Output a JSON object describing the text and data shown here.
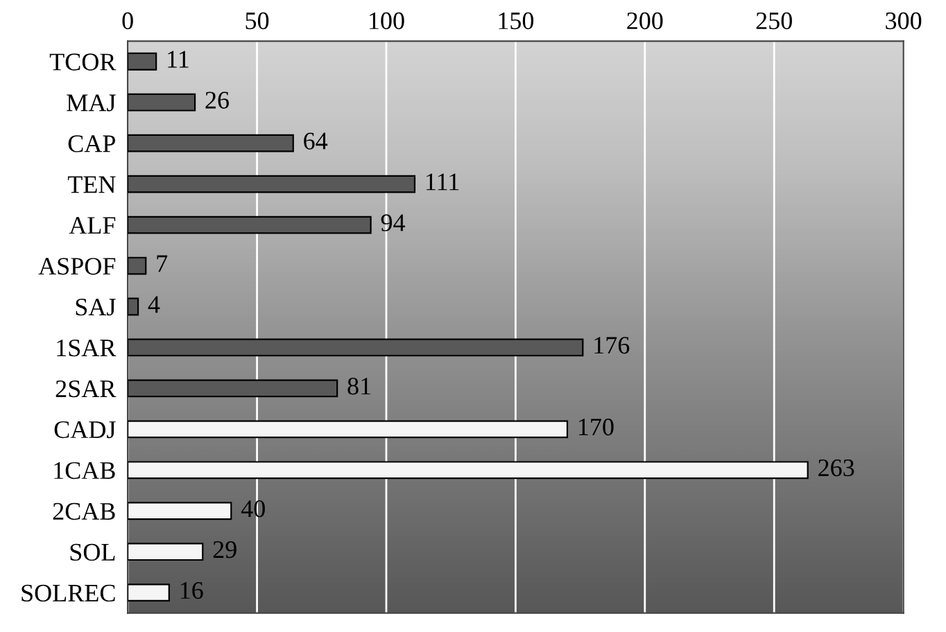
{
  "chart_data": {
    "type": "bar",
    "orientation": "horizontal",
    "categories": [
      "TCOR",
      "MAJ",
      "CAP",
      "TEN",
      "ALF",
      "ASPOF",
      "SAJ",
      "1SAR",
      "2SAR",
      "CADJ",
      "1CAB",
      "2CAB",
      "SOL",
      "SOLREC"
    ],
    "values": [
      11,
      26,
      64,
      111,
      94,
      7,
      4,
      176,
      81,
      170,
      263,
      40,
      29,
      16
    ],
    "colors": [
      "#595959",
      "#595959",
      "#595959",
      "#595959",
      "#595959",
      "#595959",
      "#595959",
      "#595959",
      "#595959",
      "#f5f5f5",
      "#f5f5f5",
      "#f5f5f5",
      "#f5f5f5",
      "#f5f5f5"
    ],
    "xlim": [
      0,
      300
    ],
    "xticks": [
      0,
      50,
      100,
      150,
      200,
      250,
      300
    ],
    "grid": "x",
    "data_labels": true
  }
}
